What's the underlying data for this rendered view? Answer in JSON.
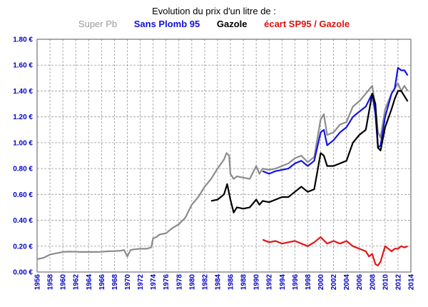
{
  "chart_data": {
    "type": "line",
    "title": "Evolution du prix d'un litre de :",
    "legend_position": "top",
    "grid": true,
    "ylim": [
      0,
      1.8
    ],
    "yticks": [
      "0.00 €",
      "0.20 €",
      "0.40 €",
      "0.60 €",
      "0.80 €",
      "1.00 €",
      "1.20 €",
      "1.40 €",
      "1.60 €",
      "1.80 €"
    ],
    "xlim": [
      1956,
      2014
    ],
    "xticks": [
      "1956",
      "1958",
      "1960",
      "1962",
      "1964",
      "1966",
      "1968",
      "1970",
      "1972",
      "1974",
      "1976",
      "1978",
      "1980",
      "1982",
      "1984",
      "1986",
      "1988",
      "1990",
      "1992",
      "1994",
      "1996",
      "1998",
      "2000",
      "2002",
      "2004",
      "2006",
      "2008",
      "2010",
      "2012",
      "2014"
    ],
    "series": [
      {
        "name": "Super Pb",
        "color": "#8c8c8c",
        "x": [
          1956,
          1957,
          1958,
          1959,
          1960,
          1961,
          1962,
          1963,
          1964,
          1965,
          1966,
          1967,
          1968,
          1969,
          1969.5,
          1970,
          1970.5,
          1971,
          1972,
          1973,
          1973.7,
          1974,
          1974.5,
          1975,
          1976,
          1977,
          1978,
          1979,
          1980,
          1981,
          1982,
          1983,
          1983.5,
          1984,
          1985,
          1985.4,
          1985.8,
          1986,
          1986.5,
          1987,
          1988,
          1989,
          1990,
          1990.5,
          1991,
          1992,
          1993,
          1994,
          1995,
          1996,
          1997,
          1998,
          1999,
          2000,
          2000.5,
          2001,
          2002,
          2003,
          2004,
          2005,
          2006,
          2007,
          2008,
          2008.5,
          2008.9,
          2009.3,
          2010,
          2011,
          2011.5,
          2012,
          2012.5,
          2013,
          2013.5
        ],
        "y": [
          0.1,
          0.11,
          0.135,
          0.145,
          0.155,
          0.158,
          0.156,
          0.155,
          0.155,
          0.155,
          0.156,
          0.16,
          0.162,
          0.165,
          0.17,
          0.12,
          0.17,
          0.175,
          0.18,
          0.18,
          0.19,
          0.26,
          0.27,
          0.29,
          0.3,
          0.34,
          0.37,
          0.42,
          0.52,
          0.58,
          0.66,
          0.72,
          0.76,
          0.8,
          0.87,
          0.92,
          0.9,
          0.76,
          0.72,
          0.74,
          0.73,
          0.72,
          0.82,
          0.76,
          0.8,
          0.79,
          0.8,
          0.82,
          0.84,
          0.88,
          0.9,
          0.85,
          0.89,
          1.18,
          1.22,
          1.06,
          1.08,
          1.14,
          1.16,
          1.28,
          1.32,
          1.38,
          1.44,
          1.28,
          1.08,
          1.04,
          1.26,
          1.38,
          1.42,
          1.46,
          1.4,
          1.44,
          1.4
        ]
      },
      {
        "name": "Sans Plomb 95",
        "color": "#1414e6",
        "x": [
          1991,
          1992,
          1993,
          1994,
          1995,
          1996,
          1997,
          1998,
          1999,
          2000,
          2000.5,
          2001,
          2002,
          2003,
          2004,
          2005,
          2006,
          2007,
          2008,
          2008.5,
          2008.9,
          2009.3,
          2010,
          2011,
          2011.5,
          2012,
          2012.5,
          2013,
          2013.5
        ],
        "y": [
          0.78,
          0.76,
          0.78,
          0.79,
          0.8,
          0.84,
          0.86,
          0.82,
          0.86,
          1.08,
          1.1,
          0.98,
          1.02,
          1.08,
          1.12,
          1.2,
          1.24,
          1.28,
          1.38,
          1.22,
          0.96,
          0.98,
          1.2,
          1.38,
          1.42,
          1.58,
          1.56,
          1.56,
          1.52
        ]
      },
      {
        "name": "Gazole",
        "color": "#000000",
        "x": [
          1983,
          1984,
          1985,
          1985.5,
          1986,
          1986.5,
          1987,
          1988,
          1989,
          1990,
          1990.5,
          1991,
          1992,
          1993,
          1994,
          1995,
          1996,
          1997,
          1998,
          1999,
          2000,
          2000.5,
          2001,
          2002,
          2003,
          2004,
          2005,
          2006,
          2007,
          2008,
          2008.5,
          2008.9,
          2009.3,
          2010,
          2011,
          2011.5,
          2012,
          2012.5,
          2013,
          2013.5
        ],
        "y": [
          0.55,
          0.56,
          0.6,
          0.68,
          0.56,
          0.46,
          0.5,
          0.49,
          0.5,
          0.56,
          0.52,
          0.55,
          0.54,
          0.56,
          0.58,
          0.58,
          0.62,
          0.66,
          0.62,
          0.64,
          0.92,
          0.9,
          0.82,
          0.82,
          0.84,
          0.86,
          1.0,
          1.06,
          1.1,
          1.38,
          1.3,
          0.96,
          0.94,
          1.12,
          1.26,
          1.34,
          1.4,
          1.4,
          1.36,
          1.32
        ]
      },
      {
        "name": "écart SP95 / Gazole",
        "color": "#e61414",
        "x": [
          1991,
          1992,
          1993,
          1994,
          1995,
          1996,
          1997,
          1998,
          1999,
          2000,
          2001,
          2002,
          2003,
          2004,
          2005,
          2006,
          2007,
          2007.5,
          2008,
          2008.5,
          2008.9,
          2009.3,
          2010,
          2011,
          2011.5,
          2012,
          2012.5,
          2013,
          2013.5
        ],
        "y": [
          0.25,
          0.23,
          0.24,
          0.22,
          0.23,
          0.24,
          0.22,
          0.2,
          0.23,
          0.27,
          0.22,
          0.24,
          0.22,
          0.24,
          0.2,
          0.18,
          0.16,
          0.12,
          0.14,
          0.06,
          0.05,
          0.08,
          0.2,
          0.16,
          0.18,
          0.18,
          0.2,
          0.19,
          0.2
        ]
      }
    ]
  }
}
